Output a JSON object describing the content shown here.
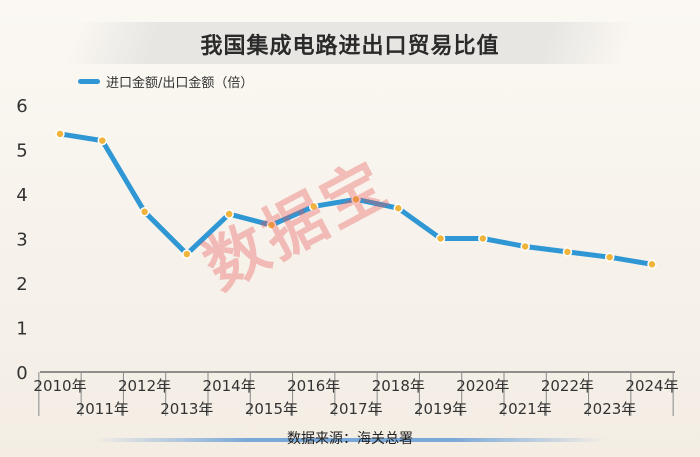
{
  "title": "我国集成电路进出口贸易比值",
  "legend_label": "进口金额/出口金额（倍）",
  "source": "数据来源：海关总署",
  "watermark": "数据宝",
  "colors": {
    "line": "#2f97d4",
    "point": "#f0b43c",
    "axis": "#555555"
  },
  "chart_data": {
    "type": "line",
    "categories": [
      "2010年",
      "2011年",
      "2012年",
      "2013年",
      "2014年",
      "2015年",
      "2016年",
      "2017年",
      "2018年",
      "2019年",
      "2020年",
      "2021年",
      "2022年",
      "2023年",
      "2024年"
    ],
    "series": [
      {
        "name": "进口金额/出口金额（倍）",
        "values": [
          5.35,
          5.2,
          3.6,
          2.65,
          3.55,
          3.3,
          3.72,
          3.88,
          3.68,
          3.0,
          3.0,
          2.82,
          2.7,
          2.58,
          2.42
        ]
      }
    ],
    "ylim": [
      0,
      6
    ],
    "yticks": [
      "0",
      "1",
      "2",
      "3",
      "4",
      "5",
      "6"
    ],
    "grid": false
  }
}
